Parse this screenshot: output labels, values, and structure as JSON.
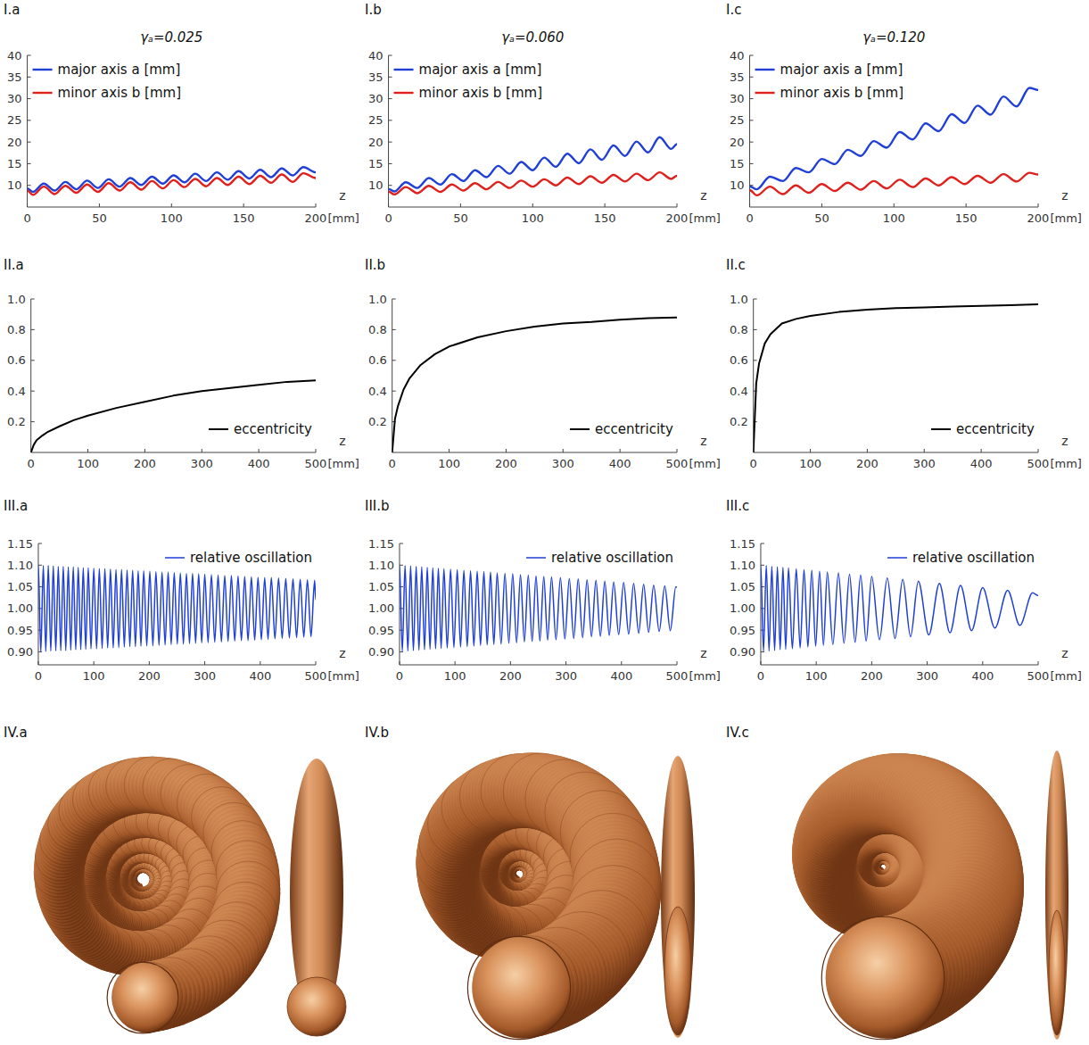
{
  "chart_data": [
    {
      "panel": "I.a",
      "type": "line",
      "title": "γₐ=0.025",
      "xlabel": "z",
      "xunit": "[mm]",
      "x": [
        0,
        4,
        11.5,
        19,
        26.5,
        34,
        41.5,
        49,
        56.5,
        64,
        71.5,
        79,
        86.5,
        94,
        101.5,
        109,
        116.5,
        124,
        131.5,
        139,
        146.5,
        154,
        161.5,
        169,
        176.5,
        184,
        191.5,
        200
      ],
      "series": [
        {
          "name": "major axis a [mm]",
          "color": "#1f3fd6",
          "line_style": "smooth",
          "values": [
            9.3,
            8.5,
            10.4,
            8.8,
            10.8,
            9.1,
            11.1,
            9.4,
            11.4,
            9.7,
            11.7,
            10.1,
            12.0,
            10.4,
            12.3,
            10.7,
            12.7,
            11.0,
            13.0,
            11.3,
            13.3,
            11.6,
            13.6,
            11.9,
            13.9,
            12.3,
            14.2,
            13.0
          ]
        },
        {
          "name": "minor axis b [mm]",
          "color": "#e0201c",
          "line_style": "smooth",
          "values": [
            8.8,
            7.8,
            9.7,
            8.0,
            9.9,
            8.3,
            10.2,
            8.5,
            10.5,
            8.8,
            10.7,
            9.0,
            11.0,
            9.3,
            11.2,
            9.6,
            11.5,
            9.8,
            11.7,
            10.1,
            12.0,
            10.3,
            12.2,
            10.6,
            12.5,
            10.8,
            12.8,
            11.7
          ]
        }
      ],
      "xlim": [
        0,
        200
      ],
      "ylim": [
        5,
        40
      ],
      "xticks": [
        0,
        50,
        100,
        150,
        200
      ],
      "yticks": [
        10,
        15,
        20,
        25,
        30,
        35,
        40
      ],
      "legend": "top-left"
    },
    {
      "panel": "I.b",
      "type": "line",
      "title": "γₐ=0.060",
      "xlabel": "z",
      "xunit": "[mm]",
      "x": [
        0,
        4,
        12,
        20,
        28,
        36,
        44,
        52,
        60,
        68,
        76,
        84,
        92,
        100,
        108,
        116,
        124,
        132,
        140,
        148,
        156,
        164,
        172,
        180,
        188,
        196,
        200
      ],
      "series": [
        {
          "name": "major axis a [mm]",
          "color": "#1f3fd6",
          "line_style": "smooth",
          "values": [
            9.2,
            8.6,
            10.7,
            9.4,
            11.7,
            10.2,
            12.6,
            11.0,
            13.5,
            11.9,
            14.5,
            12.7,
            15.4,
            13.5,
            16.4,
            14.3,
            17.3,
            15.1,
            18.3,
            15.9,
            19.2,
            16.8,
            20.1,
            17.6,
            21.1,
            18.4,
            19.5
          ]
        },
        {
          "name": "minor axis b [mm]",
          "color": "#e0201c",
          "line_style": "smooth",
          "values": [
            8.6,
            7.9,
            9.6,
            8.2,
            9.9,
            8.5,
            10.2,
            8.8,
            10.5,
            9.1,
            10.8,
            9.4,
            11.1,
            9.7,
            11.4,
            10.0,
            11.8,
            10.3,
            12.1,
            10.6,
            12.4,
            10.9,
            12.7,
            11.2,
            13.0,
            11.5,
            12.2
          ]
        }
      ],
      "xlim": [
        0,
        200
      ],
      "ylim": [
        5,
        40
      ],
      "xticks": [
        0,
        50,
        100,
        150,
        200
      ],
      "yticks": [
        10,
        15,
        20,
        25,
        30,
        35,
        40
      ],
      "legend": "top-left"
    },
    {
      "panel": "I.c",
      "type": "line",
      "title": "γₐ=0.120",
      "xlabel": "z",
      "xunit": "[mm]",
      "x": [
        0,
        5,
        14,
        23,
        32,
        41,
        50,
        59,
        68,
        77,
        86,
        95,
        104,
        113,
        122,
        131,
        140,
        149,
        158,
        167,
        176,
        185,
        194,
        200
      ],
      "series": [
        {
          "name": "major axis a [mm]",
          "color": "#1f3fd6",
          "line_style": "smooth",
          "values": [
            9.8,
            9.1,
            12.0,
            11.0,
            14.0,
            13.0,
            16.1,
            14.9,
            18.2,
            16.8,
            20.2,
            18.7,
            22.3,
            20.6,
            24.3,
            22.5,
            26.4,
            24.4,
            28.4,
            26.3,
            30.5,
            28.2,
            32.5,
            32.0
          ]
        },
        {
          "name": "minor axis b [mm]",
          "color": "#e0201c",
          "line_style": "smooth",
          "values": [
            8.9,
            7.7,
            9.7,
            8.0,
            10.0,
            8.3,
            10.3,
            8.7,
            10.6,
            9.0,
            11.0,
            9.3,
            11.3,
            9.6,
            11.6,
            10.0,
            11.9,
            10.3,
            12.2,
            10.6,
            12.6,
            10.9,
            12.9,
            12.5
          ]
        }
      ],
      "xlim": [
        0,
        200
      ],
      "ylim": [
        5,
        40
      ],
      "xticks": [
        0,
        50,
        100,
        150,
        200
      ],
      "yticks": [
        10,
        15,
        20,
        25,
        30,
        35,
        40
      ],
      "legend": "top-left"
    },
    {
      "panel": "II.a",
      "type": "line",
      "xlabel": "z",
      "xunit": "[mm]",
      "x": [
        0,
        5,
        10,
        20,
        30,
        50,
        75,
        100,
        150,
        200,
        250,
        300,
        350,
        400,
        450,
        500
      ],
      "series": [
        {
          "name": "eccentricity",
          "color": "#000000",
          "line_style": "solid",
          "values": [
            0,
            0.05,
            0.08,
            0.11,
            0.135,
            0.17,
            0.21,
            0.24,
            0.29,
            0.33,
            0.37,
            0.4,
            0.42,
            0.44,
            0.46,
            0.47
          ]
        }
      ],
      "xlim": [
        0,
        500
      ],
      "ylim": [
        0,
        1
      ],
      "xticks": [
        0,
        100,
        200,
        300,
        400,
        500
      ],
      "yticks": [
        0.2,
        0.4,
        0.6,
        0.8,
        {
          "value": 1,
          "label": "1.0"
        }
      ],
      "legend": "bottom-right"
    },
    {
      "panel": "II.b",
      "type": "line",
      "xlabel": "z",
      "xunit": "[mm]",
      "x": [
        0,
        5,
        10,
        20,
        30,
        50,
        75,
        100,
        150,
        200,
        250,
        300,
        350,
        400,
        450,
        500
      ],
      "series": [
        {
          "name": "eccentricity",
          "color": "#000000",
          "line_style": "solid",
          "values": [
            0,
            0.22,
            0.3,
            0.41,
            0.48,
            0.57,
            0.64,
            0.69,
            0.75,
            0.79,
            0.82,
            0.84,
            0.85,
            0.865,
            0.875,
            0.88
          ]
        }
      ],
      "xlim": [
        0,
        500
      ],
      "ylim": [
        0,
        1
      ],
      "xticks": [
        0,
        100,
        200,
        300,
        400,
        500
      ],
      "yticks": [
        0.2,
        0.4,
        0.6,
        0.8,
        {
          "value": 1,
          "label": "1.0"
        }
      ],
      "legend": "bottom-right"
    },
    {
      "panel": "II.c",
      "type": "line",
      "xlabel": "z",
      "xunit": "[mm]",
      "x": [
        0,
        5,
        10,
        20,
        30,
        50,
        75,
        100,
        150,
        200,
        250,
        300,
        350,
        400,
        450,
        500
      ],
      "series": [
        {
          "name": "eccentricity",
          "color": "#000000",
          "line_style": "solid",
          "values": [
            0,
            0.45,
            0.58,
            0.71,
            0.77,
            0.84,
            0.87,
            0.89,
            0.915,
            0.93,
            0.94,
            0.945,
            0.95,
            0.955,
            0.96,
            0.965
          ]
        }
      ],
      "xlim": [
        0,
        500
      ],
      "ylim": [
        0,
        1
      ],
      "xticks": [
        0,
        100,
        200,
        300,
        400,
        500
      ],
      "yticks": [
        0.2,
        0.4,
        0.6,
        0.8,
        {
          "value": 1,
          "label": "1.0"
        }
      ],
      "legend": "bottom-right"
    },
    {
      "panel": "III.a",
      "type": "line",
      "xlabel": "z",
      "xunit": "[mm]",
      "x": [
        0,
        4.5,
        9,
        13.5,
        18,
        22.5,
        27,
        31.5,
        36,
        40.5,
        45,
        49.5,
        54,
        58.5,
        63,
        67.5,
        72,
        76.5,
        81,
        85.5,
        90,
        95,
        100,
        105,
        110,
        115,
        120,
        125,
        130,
        135,
        140,
        145,
        150,
        155,
        160,
        165,
        170,
        175,
        180,
        185,
        190,
        195.5,
        201,
        206.5,
        212,
        217.5,
        223,
        228.5,
        234,
        239.5,
        245,
        250.5,
        256,
        261.5,
        267,
        272.5,
        278,
        283.5,
        289,
        294.5,
        300,
        306,
        312,
        318,
        324,
        330,
        336,
        342,
        348,
        354,
        360,
        366,
        372,
        378,
        384,
        390,
        396,
        402,
        408,
        414,
        420,
        426.5,
        433,
        439.5,
        446,
        452.5,
        459,
        465.5,
        472,
        478.5,
        485,
        491.5,
        498,
        500
      ],
      "series": [
        {
          "name": "relative oscillation",
          "color": "#1f3fd6",
          "line_style": "smooth",
          "values": [
            1.1,
            0.9,
            1.099,
            0.901,
            1.099,
            0.902,
            1.098,
            0.902,
            1.097,
            0.903,
            1.097,
            0.903,
            1.096,
            0.904,
            1.096,
            0.905,
            1.095,
            0.905,
            1.094,
            0.906,
            1.094,
            0.907,
            1.093,
            0.907,
            1.092,
            0.908,
            1.092,
            0.909,
            1.091,
            0.909,
            1.09,
            0.91,
            1.09,
            0.911,
            1.089,
            0.912,
            1.088,
            0.912,
            1.087,
            0.913,
            1.087,
            0.914,
            1.086,
            0.914,
            1.085,
            0.915,
            1.084,
            0.916,
            1.084,
            0.917,
            1.083,
            0.918,
            1.082,
            0.918,
            1.081,
            0.919,
            1.081,
            0.92,
            1.08,
            0.921,
            1.079,
            0.921,
            1.078,
            0.922,
            1.077,
            0.923,
            1.076,
            0.924,
            1.076,
            0.925,
            1.075,
            0.926,
            1.074,
            0.926,
            1.073,
            0.927,
            1.072,
            0.928,
            1.071,
            0.929,
            1.071,
            0.93,
            1.07,
            0.931,
            1.069,
            0.932,
            1.068,
            0.933,
            1.067,
            0.934,
            1.066,
            0.935,
            1.065,
            1.02
          ]
        }
      ],
      "xlim": [
        0,
        500
      ],
      "ylim": [
        0.87,
        1.15
      ],
      "xticks": [
        0,
        100,
        200,
        300,
        400,
        500
      ],
      "yticks": [
        {
          "value": 0.9,
          "label": "0.90"
        },
        {
          "value": 0.95,
          "label": "0.95"
        },
        {
          "value": 1,
          "label": "1.00"
        },
        {
          "value": 1.05,
          "label": "1.05"
        },
        {
          "value": 1.1,
          "label": "1.10"
        },
        {
          "value": 1.15,
          "label": "1.15"
        }
      ],
      "legend": "top-right"
    },
    {
      "panel": "III.b",
      "type": "line",
      "xlabel": "z",
      "xunit": "[mm]",
      "x": [
        0,
        5,
        10,
        15,
        20,
        25,
        30,
        35,
        40,
        45,
        50,
        55,
        60,
        65,
        70,
        75,
        80,
        86,
        92,
        98,
        104,
        110,
        116,
        122,
        128,
        134,
        140,
        146,
        152,
        158,
        164,
        170,
        176,
        183,
        190,
        197,
        204,
        211,
        218,
        225,
        232,
        239,
        246,
        253,
        260,
        267,
        274,
        282,
        290,
        298,
        306,
        314,
        322,
        330,
        338,
        346,
        354,
        362,
        370,
        378,
        386,
        395,
        404,
        413,
        422,
        431,
        440,
        449,
        458,
        468,
        478,
        488,
        498,
        500
      ],
      "series": [
        {
          "name": "relative oscillation",
          "color": "#1f3fd6",
          "line_style": "smooth",
          "values": [
            1.1,
            0.901,
            1.099,
            0.902,
            1.098,
            0.903,
            1.097,
            0.904,
            1.096,
            0.905,
            1.095,
            0.906,
            1.094,
            0.907,
            1.093,
            0.908,
            1.092,
            0.909,
            1.091,
            0.91,
            1.09,
            0.911,
            1.088,
            0.912,
            1.087,
            0.913,
            1.086,
            0.915,
            1.085,
            0.916,
            1.084,
            0.917,
            1.082,
            0.918,
            1.081,
            0.92,
            1.08,
            0.921,
            1.078,
            0.923,
            1.077,
            0.924,
            1.075,
            0.925,
            1.074,
            0.927,
            1.073,
            0.928,
            1.071,
            0.93,
            1.069,
            0.931,
            1.068,
            0.933,
            1.066,
            0.935,
            1.065,
            0.936,
            1.063,
            0.938,
            1.061,
            0.94,
            1.06,
            0.941,
            1.058,
            0.943,
            1.056,
            0.945,
            1.054,
            0.947,
            1.052,
            0.949,
            1.05,
            1.049
          ]
        }
      ],
      "xlim": [
        0,
        500
      ],
      "ylim": [
        0.87,
        1.15
      ],
      "xticks": [
        0,
        100,
        200,
        300,
        400,
        500
      ],
      "yticks": [
        {
          "value": 0.9,
          "label": "0.90"
        },
        {
          "value": 0.95,
          "label": "0.95"
        },
        {
          "value": 1,
          "label": "1.00"
        },
        {
          "value": 1.05,
          "label": "1.05"
        },
        {
          "value": 1.1,
          "label": "1.10"
        },
        {
          "value": 1.15,
          "label": "1.15"
        }
      ],
      "legend": "top-right"
    },
    {
      "panel": "III.c",
      "type": "line",
      "xlabel": "z",
      "xunit": "[mm]",
      "x": [
        0,
        5,
        10,
        15,
        20,
        25,
        30,
        35,
        40,
        45,
        50,
        57,
        64,
        71,
        78,
        85,
        92,
        99,
        106,
        113,
        120,
        130,
        140,
        150,
        160,
        170,
        180,
        190,
        200,
        214,
        228,
        242,
        256,
        270,
        284,
        303,
        322,
        341,
        360,
        380,
        400,
        422,
        445,
        467,
        490,
        500
      ],
      "series": [
        {
          "name": "relative oscillation",
          "color": "#1f3fd6",
          "line_style": "smooth",
          "values": [
            1.1,
            0.901,
            1.099,
            0.902,
            1.097,
            0.903,
            1.096,
            0.905,
            1.095,
            0.906,
            1.094,
            0.907,
            1.092,
            0.909,
            1.09,
            0.911,
            1.088,
            0.913,
            1.086,
            0.915,
            1.084,
            0.917,
            1.082,
            0.92,
            1.079,
            0.922,
            1.077,
            0.925,
            1.074,
            0.928,
            1.07,
            0.931,
            1.067,
            0.935,
            1.063,
            0.939,
            1.058,
            0.944,
            1.053,
            0.949,
            1.048,
            0.955,
            1.042,
            0.961,
            1.036,
            1.03
          ]
        }
      ],
      "xlim": [
        0,
        500
      ],
      "ylim": [
        0.87,
        1.15
      ],
      "xticks": [
        0,
        100,
        200,
        300,
        400,
        500
      ],
      "yticks": [
        {
          "value": 0.9,
          "label": "0.90"
        },
        {
          "value": 0.95,
          "label": "0.95"
        },
        {
          "value": 1,
          "label": "1.00"
        },
        {
          "value": 1.05,
          "label": "1.05"
        },
        {
          "value": 1.1,
          "label": "1.10"
        },
        {
          "value": 1.15,
          "label": "1.15"
        }
      ],
      "legend": "top-right"
    }
  ],
  "illustrations": [
    {
      "panel": "IV.a"
    },
    {
      "panel": "IV.b"
    },
    {
      "panel": "IV.c"
    }
  ]
}
